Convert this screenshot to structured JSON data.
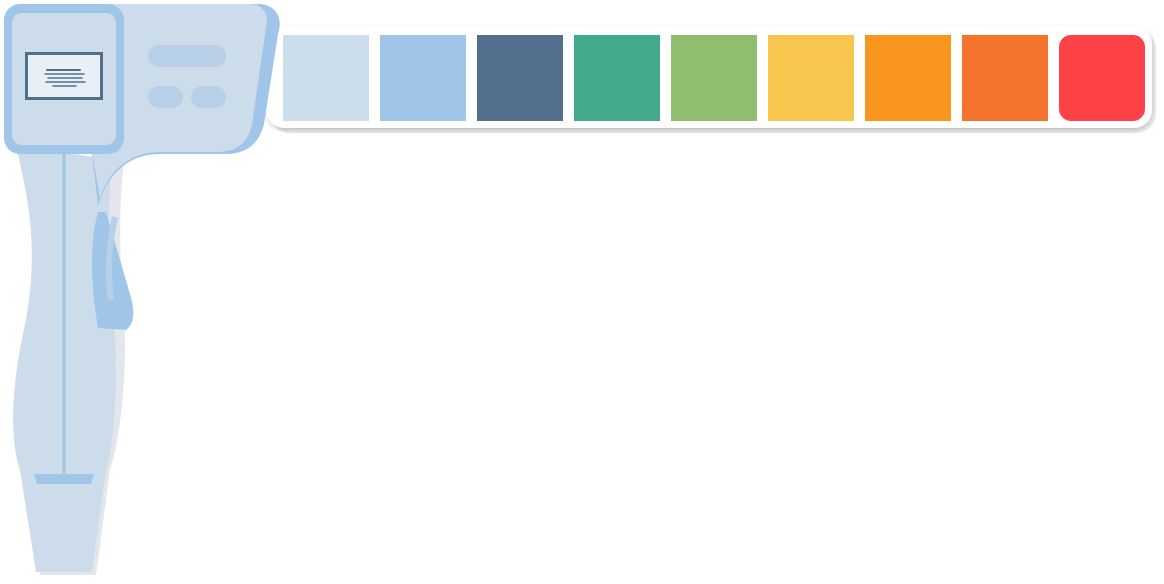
{
  "device": {
    "colors": {
      "body_light": "#CDDCEB",
      "body_accent": "#9FC5E8",
      "screen_frame": "#52708E",
      "screen_fill": "#E8EFF7",
      "tray_bg": "#FFFFFF"
    },
    "icons": {
      "screen": "screen-icon",
      "buttons": "button-icon"
    }
  },
  "swatches": [
    {
      "name": "very-light-blue",
      "color": "#CBDCEB"
    },
    {
      "name": "light-blue",
      "color": "#9FC5E8"
    },
    {
      "name": "slate-blue",
      "color": "#52708E"
    },
    {
      "name": "green",
      "color": "#42AA8A"
    },
    {
      "name": "light-green",
      "color": "#8FBE6E"
    },
    {
      "name": "yellow",
      "color": "#F8C64F"
    },
    {
      "name": "orange",
      "color": "#F8961F"
    },
    {
      "name": "dark-orange",
      "color": "#F4742D"
    },
    {
      "name": "red",
      "color": "#FD4346"
    }
  ]
}
